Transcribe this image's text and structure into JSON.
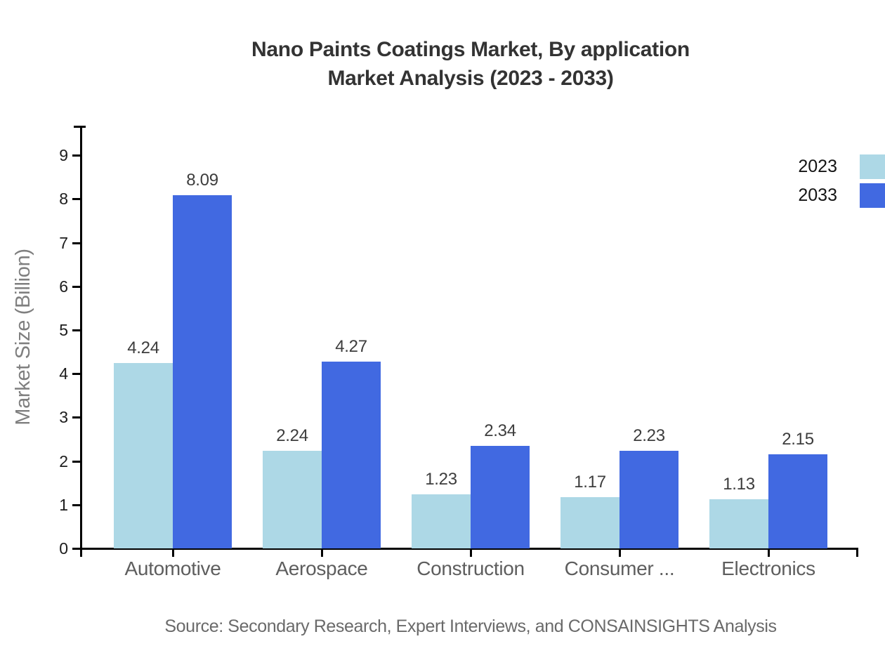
{
  "title": {
    "line1": "Nano Paints Coatings Market, By application",
    "line2": "Market Analysis (2023 - 2033)"
  },
  "source": "Source: Secondary Research, Expert Interviews, and CONSAINSIGHTS Analysis",
  "colors": {
    "series_2023": "#ADD8E6",
    "series_2033": "#4169E1",
    "axis": "#000000",
    "title_text": "#333333",
    "category_text": "#5e5e5e",
    "value_text": "#3d3d3d",
    "ylabel_text": "#7f7f7f",
    "source_text": "#6a6a6a"
  },
  "chart_data": {
    "type": "bar",
    "title": "Nano Paints Coatings Market, By application Market Analysis (2023 - 2033)",
    "categories": [
      "Automotive",
      "Aerospace",
      "Construction",
      "Consumer ...",
      "Electronics"
    ],
    "series": [
      {
        "name": "2023",
        "color": "#ADD8E6",
        "values": [
          4.24,
          2.24,
          1.23,
          1.17,
          1.13
        ]
      },
      {
        "name": "2033",
        "color": "#4169E1",
        "values": [
          8.09,
          4.27,
          2.34,
          2.23,
          2.15
        ]
      }
    ],
    "value_labels": [
      [
        "4.24",
        "2.24",
        "1.23",
        "1.17",
        "1.13"
      ],
      [
        "8.09",
        "4.27",
        "2.34",
        "2.23",
        "2.15"
      ]
    ],
    "xlabel": "",
    "ylabel": "Market Size (Billion)",
    "yticks": [
      0,
      1,
      2,
      3,
      4,
      5,
      6,
      7,
      8,
      9
    ],
    "ylim": [
      0,
      9.65
    ],
    "grid": false,
    "legend_position": "upper-right",
    "bar_value_labels_shown": true
  }
}
